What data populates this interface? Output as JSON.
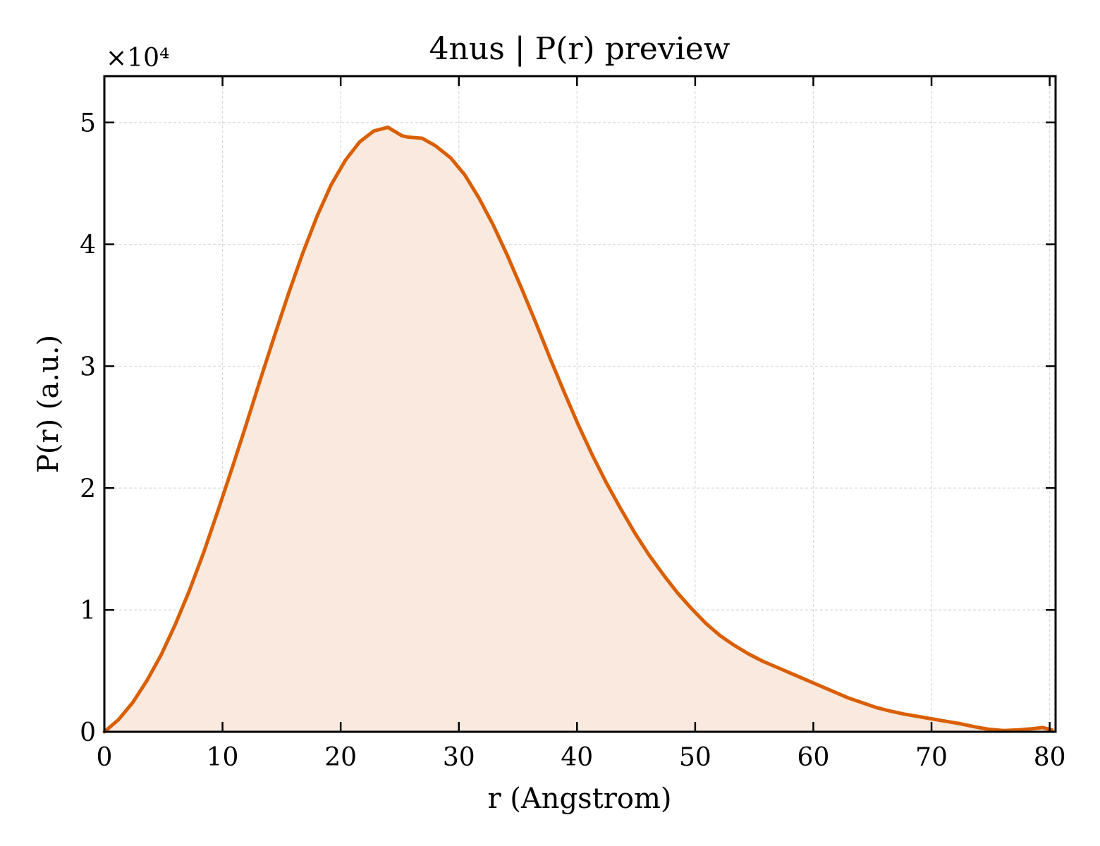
{
  "chart_data": {
    "type": "area",
    "title": "4nus | P(r) preview",
    "xlabel": "r (Angstrom)",
    "ylabel": "P(r) (a.u.)",
    "y_multiplier": "×10⁴",
    "xlim": [
      0,
      80.5
    ],
    "ylim": [
      0,
      5.38
    ],
    "xticks": [
      0,
      10,
      20,
      30,
      40,
      50,
      60,
      70,
      80
    ],
    "yticks": [
      0,
      1,
      2,
      3,
      4,
      5
    ],
    "xtick_labels": [
      "0",
      "10",
      "20",
      "30",
      "40",
      "50",
      "60",
      "70",
      "80"
    ],
    "ytick_labels": [
      "0",
      "1",
      "2",
      "3",
      "4",
      "5"
    ],
    "grid": true,
    "legend": false,
    "series": [
      {
        "color": "#d95f02",
        "fill_color": "#f9e9df",
        "x": [
          0,
          1.2,
          2.4,
          3.6,
          4.8,
          6.0,
          7.2,
          8.4,
          9.6,
          10.8,
          12.0,
          13.2,
          14.4,
          15.6,
          16.8,
          18.0,
          19.2,
          20.4,
          21.6,
          22.8,
          24.0,
          25.2,
          25.7,
          26.9,
          28.0,
          29.3,
          30.5,
          31.7,
          32.9,
          34.1,
          35.3,
          36.5,
          37.7,
          38.9,
          40.1,
          41.3,
          42.5,
          43.7,
          44.9,
          46.1,
          47.3,
          48.5,
          49.7,
          50.9,
          52.1,
          53.3,
          54.5,
          55.7,
          56.9,
          58.1,
          59.3,
          60.5,
          61.7,
          62.9,
          64.1,
          65.3,
          66.5,
          67.7,
          68.9,
          70.1,
          71.3,
          72.5,
          73.7,
          74.9,
          76.1,
          77.3,
          78.5,
          79.4,
          80.2
        ],
        "y": [
          0,
          0.1,
          0.24,
          0.42,
          0.63,
          0.88,
          1.16,
          1.47,
          1.81,
          2.16,
          2.52,
          2.89,
          3.25,
          3.6,
          3.93,
          4.23,
          4.49,
          4.69,
          4.84,
          4.93,
          4.96,
          4.89,
          4.88,
          4.87,
          4.81,
          4.71,
          4.57,
          4.38,
          4.16,
          3.91,
          3.64,
          3.36,
          3.07,
          2.79,
          2.52,
          2.27,
          2.04,
          1.83,
          1.63,
          1.45,
          1.29,
          1.14,
          1.01,
          0.89,
          0.79,
          0.71,
          0.64,
          0.58,
          0.53,
          0.48,
          0.43,
          0.38,
          0.33,
          0.28,
          0.24,
          0.2,
          0.17,
          0.145,
          0.125,
          0.105,
          0.085,
          0.065,
          0.04,
          0.02,
          0.01,
          0.015,
          0.025,
          0.035,
          0.015
        ]
      }
    ]
  }
}
